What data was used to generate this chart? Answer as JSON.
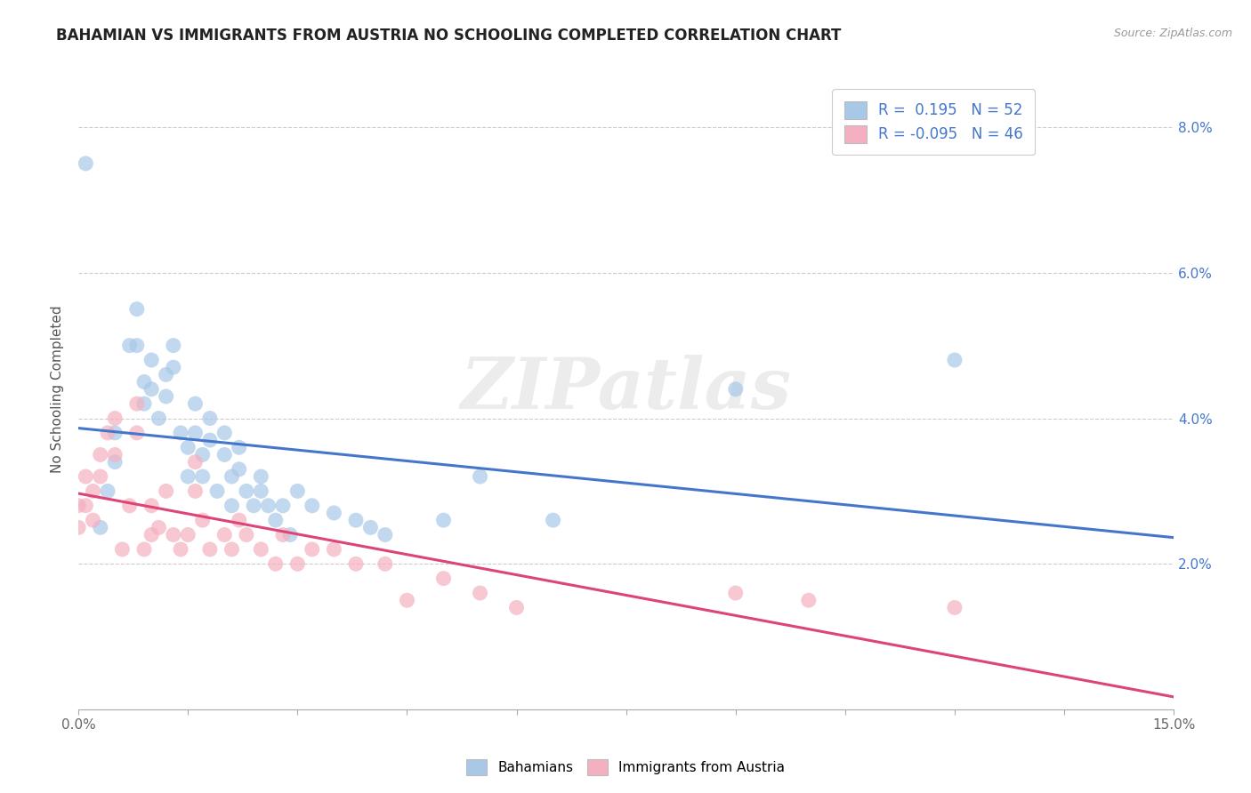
{
  "title": "BAHAMIAN VS IMMIGRANTS FROM AUSTRIA NO SCHOOLING COMPLETED CORRELATION CHART",
  "source_text": "Source: ZipAtlas.com",
  "ylabel": "No Schooling Completed",
  "xlim": [
    0.0,
    0.15
  ],
  "ylim": [
    0.0,
    0.088
  ],
  "xticks": [
    0.0,
    0.015,
    0.03,
    0.045,
    0.06,
    0.075,
    0.09,
    0.105,
    0.12,
    0.135,
    0.15
  ],
  "xtick_labels_show": [
    "0.0%",
    "",
    "",
    "",
    "",
    "",
    "",
    "",
    "",
    "",
    "15.0%"
  ],
  "yticks": [
    0.0,
    0.02,
    0.04,
    0.06,
    0.08
  ],
  "ytick_labels_right": [
    "",
    "2.0%",
    "4.0%",
    "6.0%",
    "8.0%"
  ],
  "r_blue": 0.195,
  "n_blue": 52,
  "r_pink": -0.095,
  "n_pink": 46,
  "blue_color": "#a8c8e8",
  "pink_color": "#f4b0c0",
  "blue_line_color": "#4477cc",
  "pink_line_color": "#dd4477",
  "watermark_text": "ZIPatlas",
  "legend_text_color": "#4477cc",
  "blue_scatter_x": [
    0.001,
    0.003,
    0.004,
    0.005,
    0.005,
    0.007,
    0.008,
    0.008,
    0.009,
    0.009,
    0.01,
    0.01,
    0.011,
    0.012,
    0.012,
    0.013,
    0.013,
    0.014,
    0.015,
    0.015,
    0.016,
    0.016,
    0.017,
    0.017,
    0.018,
    0.018,
    0.019,
    0.02,
    0.02,
    0.021,
    0.021,
    0.022,
    0.022,
    0.023,
    0.024,
    0.025,
    0.025,
    0.026,
    0.027,
    0.028,
    0.029,
    0.03,
    0.032,
    0.035,
    0.038,
    0.04,
    0.042,
    0.05,
    0.055,
    0.065,
    0.09,
    0.12
  ],
  "blue_scatter_y": [
    0.075,
    0.025,
    0.03,
    0.038,
    0.034,
    0.05,
    0.055,
    0.05,
    0.045,
    0.042,
    0.048,
    0.044,
    0.04,
    0.046,
    0.043,
    0.05,
    0.047,
    0.038,
    0.036,
    0.032,
    0.042,
    0.038,
    0.035,
    0.032,
    0.04,
    0.037,
    0.03,
    0.038,
    0.035,
    0.032,
    0.028,
    0.036,
    0.033,
    0.03,
    0.028,
    0.032,
    0.03,
    0.028,
    0.026,
    0.028,
    0.024,
    0.03,
    0.028,
    0.027,
    0.026,
    0.025,
    0.024,
    0.026,
    0.032,
    0.026,
    0.044,
    0.048
  ],
  "pink_scatter_x": [
    0.0,
    0.0,
    0.001,
    0.001,
    0.002,
    0.002,
    0.003,
    0.003,
    0.004,
    0.005,
    0.005,
    0.006,
    0.007,
    0.008,
    0.008,
    0.009,
    0.01,
    0.01,
    0.011,
    0.012,
    0.013,
    0.014,
    0.015,
    0.016,
    0.016,
    0.017,
    0.018,
    0.02,
    0.021,
    0.022,
    0.023,
    0.025,
    0.027,
    0.028,
    0.03,
    0.032,
    0.035,
    0.038,
    0.042,
    0.045,
    0.05,
    0.055,
    0.06,
    0.09,
    0.1,
    0.12
  ],
  "pink_scatter_y": [
    0.028,
    0.025,
    0.032,
    0.028,
    0.03,
    0.026,
    0.035,
    0.032,
    0.038,
    0.04,
    0.035,
    0.022,
    0.028,
    0.042,
    0.038,
    0.022,
    0.028,
    0.024,
    0.025,
    0.03,
    0.024,
    0.022,
    0.024,
    0.034,
    0.03,
    0.026,
    0.022,
    0.024,
    0.022,
    0.026,
    0.024,
    0.022,
    0.02,
    0.024,
    0.02,
    0.022,
    0.022,
    0.02,
    0.02,
    0.015,
    0.018,
    0.016,
    0.014,
    0.016,
    0.015,
    0.014
  ]
}
